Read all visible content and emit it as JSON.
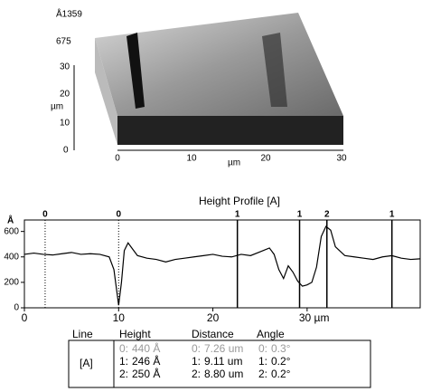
{
  "surface": {
    "z_labels": [
      "Å1359",
      "675"
    ],
    "y_labels": [
      "30",
      "20",
      "10",
      "0"
    ],
    "y_unit": "µm",
    "x_labels": [
      "0",
      "10",
      "20",
      "30"
    ],
    "x_unit": "µm"
  },
  "chart_data": {
    "type": "line",
    "title": "Height Profile [A]",
    "y_label": "Å",
    "color": "#000000",
    "x": [
      0,
      1,
      2,
      3,
      4,
      5,
      6,
      7,
      8,
      9,
      9.5,
      10,
      10.3,
      10.6,
      11,
      11.5,
      12,
      13,
      14,
      15,
      16,
      17,
      18,
      19,
      20,
      21,
      22,
      23,
      24,
      25,
      26,
      26.5,
      27,
      27.5,
      28,
      28.5,
      29,
      29.5,
      30,
      30.5,
      31,
      31.5,
      32,
      32.5,
      33,
      34,
      35,
      36,
      37,
      38,
      39,
      40,
      41,
      42
    ],
    "values": [
      420,
      430,
      420,
      415,
      425,
      435,
      420,
      425,
      420,
      400,
      300,
      20,
      200,
      450,
      510,
      460,
      410,
      390,
      380,
      360,
      380,
      390,
      400,
      410,
      420,
      405,
      400,
      420,
      410,
      440,
      470,
      420,
      300,
      230,
      330,
      280,
      210,
      170,
      180,
      200,
      320,
      560,
      640,
      610,
      480,
      410,
      400,
      390,
      380,
      400,
      410,
      390,
      380,
      385
    ],
    "xlim": [
      0,
      42
    ],
    "ylim": [
      0,
      690
    ],
    "xticks": [
      0,
      10,
      20,
      {
        "value": 30,
        "label": "30 µm"
      }
    ],
    "yticks": [
      0,
      200,
      400,
      600
    ],
    "cursors": [
      {
        "x": 2.2,
        "label": "0",
        "style": "dotted"
      },
      {
        "x": 10,
        "label": "0",
        "style": "dotted"
      },
      {
        "x": 22.6,
        "label": "1",
        "style": "solid"
      },
      {
        "x": 29.2,
        "label": "1",
        "style": "solid"
      },
      {
        "x": 32.1,
        "label": "2",
        "style": "solid"
      },
      {
        "x": 39,
        "label": "1",
        "style": "solid"
      }
    ]
  },
  "table": {
    "headers": [
      "Line",
      "Height",
      "Distance",
      "Angle"
    ],
    "row_label": "[A]",
    "rows": [
      [
        "0:",
        "440 Å",
        "0:",
        "7.26 um",
        "0:",
        "0.3°"
      ],
      [
        "1:",
        "246 Å",
        "1:",
        "9.11 um",
        "1:",
        "0.2°"
      ],
      [
        "2:",
        "250 Å",
        "2:",
        "8.80 um",
        "2:",
        "0.2°"
      ]
    ]
  }
}
